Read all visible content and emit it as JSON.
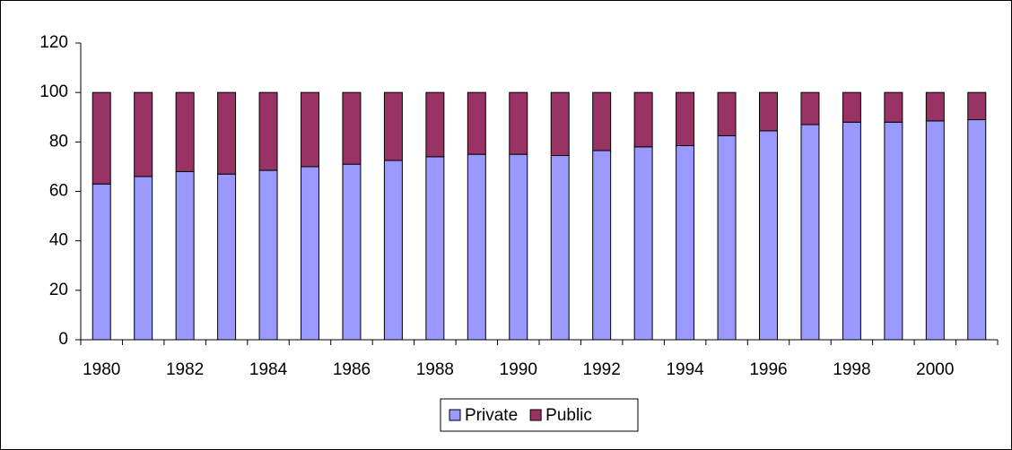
{
  "chart_data": {
    "type": "stacked_bar",
    "categories": [
      "1980",
      null,
      "1982",
      null,
      "1984",
      null,
      "1986",
      null,
      "1988",
      null,
      "1990",
      null,
      "1992",
      null,
      "1994",
      null,
      "1996",
      null,
      "1998",
      null,
      "2000",
      null
    ],
    "series": [
      {
        "name": "Private",
        "color": "#9999ff",
        "values": [
          63,
          66,
          68,
          67,
          68.5,
          70,
          71,
          72.5,
          74,
          75,
          75,
          74.5,
          76.5,
          78,
          78.5,
          82.5,
          84.5,
          87,
          88,
          88,
          88.5,
          89
        ]
      },
      {
        "name": "Public",
        "color": "#993366",
        "values": [
          37,
          34,
          32,
          33,
          31.5,
          30,
          29,
          27.5,
          26,
          25,
          25,
          25.5,
          23.5,
          22,
          21.5,
          17.5,
          15.5,
          13,
          12,
          12,
          11.5,
          11
        ]
      }
    ],
    "ylim": [
      0,
      120
    ],
    "yticks": [
      0,
      20,
      40,
      60,
      80,
      100,
      120
    ],
    "grid": false,
    "legend": "bottom"
  }
}
